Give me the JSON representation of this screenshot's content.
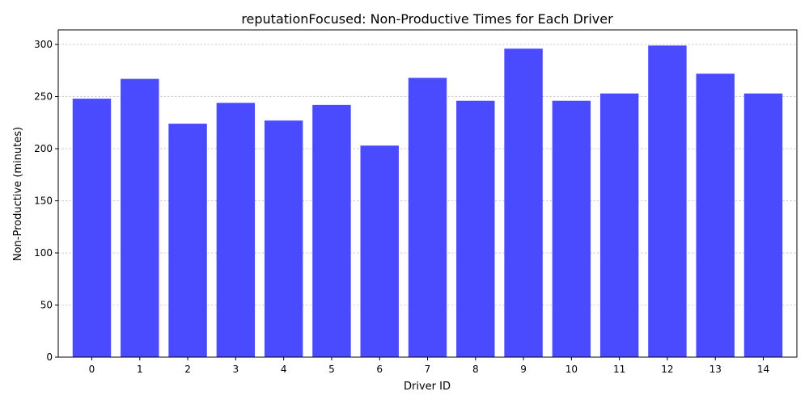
{
  "chart_data": {
    "type": "bar",
    "title": "reputationFocused: Non-Productive Times for Each Driver",
    "xlabel": "Driver ID",
    "ylabel": "Non-Productive (minutes)",
    "categories": [
      "0",
      "1",
      "2",
      "3",
      "4",
      "5",
      "6",
      "7",
      "8",
      "9",
      "10",
      "11",
      "12",
      "13",
      "14"
    ],
    "values": [
      248,
      267,
      224,
      244,
      227,
      242,
      203,
      268,
      246,
      296,
      246,
      253,
      299,
      272,
      253
    ],
    "ylim": [
      0,
      314
    ],
    "yticks": [
      0,
      50,
      100,
      150,
      200,
      250,
      300
    ],
    "grid": "y-dashed",
    "bar_color": "#4a4aff"
  }
}
